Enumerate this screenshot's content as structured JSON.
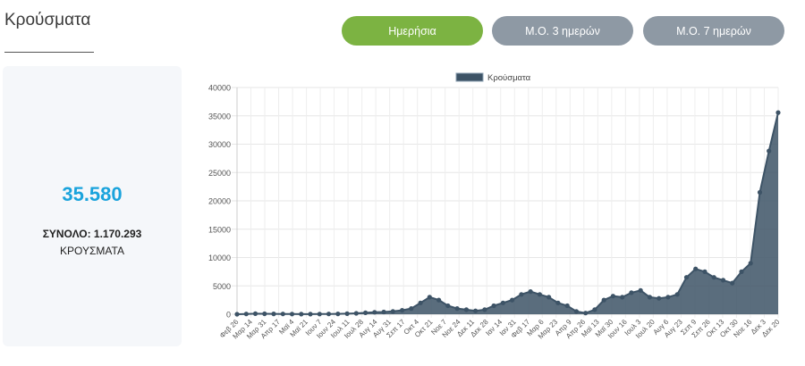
{
  "header": {
    "title": "Κρούσματα",
    "buttons": {
      "daily": "Ημερήσια",
      "avg3": "Μ.Ο. 3 ημερών",
      "avg7": "Μ.Ο. 7 ημερών"
    }
  },
  "summary": {
    "latest": "35.580",
    "total_label": "ΣΥΝΟΛΟ: 1.170.293",
    "unit": "ΚΡΟΥΣΜΑΤΑ"
  },
  "colors": {
    "accent": "#7cb342",
    "inactive": "#8e99a4",
    "highlight": "#1aa3dc",
    "series": "#3d5366"
  },
  "chart_data": {
    "type": "line",
    "legend": "Κρούσματα",
    "legend_position": "top",
    "ylim": [
      0,
      40000
    ],
    "yticks": [
      0,
      5000,
      10000,
      15000,
      20000,
      25000,
      30000,
      35000,
      40000
    ],
    "grid": true,
    "xticks": [
      "Φεβ 26",
      "Μαρ 14",
      "Μαρ 31",
      "Απρ 17",
      "Μαϊ 4",
      "Μαϊ 21",
      "Ιουν 7",
      "Ιουν 24",
      "Ιουλ 11",
      "Ιουλ 28",
      "Αυγ 14",
      "Αυγ 31",
      "Σεπ 17",
      "Οκτ 4",
      "Οκτ 21",
      "Νοε 7",
      "Νοε 24",
      "Δεκ 11",
      "Δεκ 28",
      "Ιαν 14",
      "Ιαν 31",
      "Φεβ 17",
      "Μαρ 6",
      "Μαρ 23",
      "Απρ 9",
      "Απρ 26",
      "Μαϊ 13",
      "Μαϊ 30",
      "Ιουν 16",
      "Ιουλ 3",
      "Ιουλ 20",
      "Αυγ 6",
      "Αυγ 23",
      "Σεπ 9",
      "Σεπ 26",
      "Οκτ 13",
      "Οκτ 30",
      "Νοε 16",
      "Δεκ 3",
      "Δεκ 20"
    ],
    "series": [
      {
        "name": "Κρούσματα",
        "values": [
          0,
          50,
          100,
          80,
          60,
          40,
          30,
          20,
          20,
          30,
          40,
          60,
          100,
          150,
          250,
          350,
          400,
          500,
          700,
          1000,
          2000,
          3000,
          2500,
          1500,
          1000,
          800,
          600,
          800,
          1500,
          2000,
          2500,
          3500,
          4000,
          3500,
          3000,
          2000,
          1500,
          500,
          200,
          800,
          2500,
          3200,
          3000,
          3800,
          4200,
          3000,
          2800,
          3000,
          3500,
          6500,
          8000,
          7500,
          6500,
          6000,
          5500,
          7500,
          9000,
          21500,
          28800,
          35580
        ]
      }
    ]
  }
}
